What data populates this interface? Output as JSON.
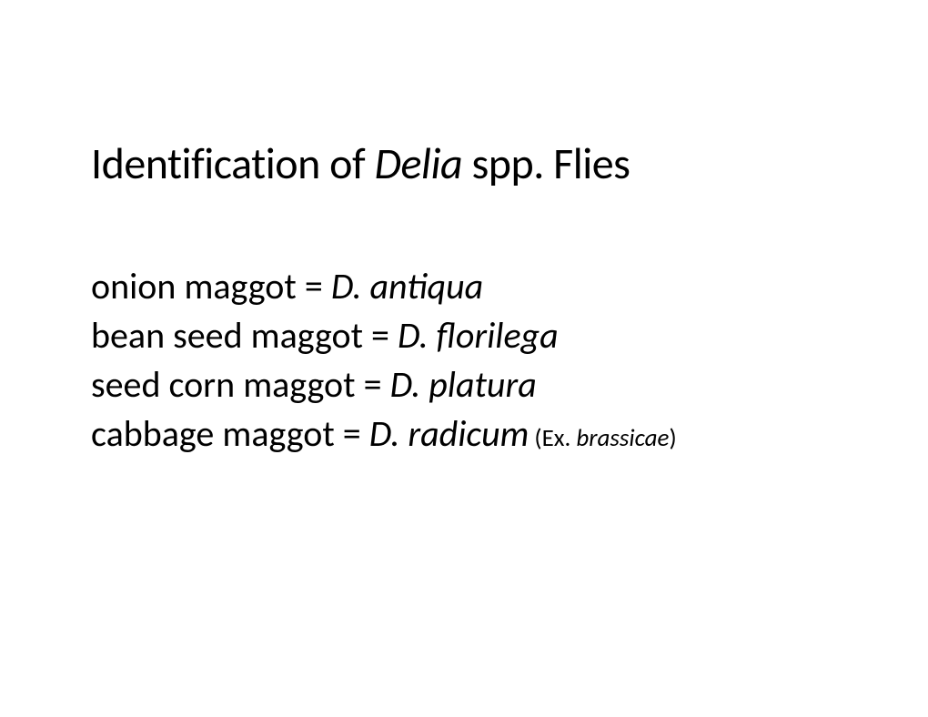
{
  "title": {
    "prefix": "Identification of ",
    "genus": "Delia",
    "suffix": " spp. Flies",
    "fontsize": 48,
    "color": "#000000"
  },
  "species": [
    {
      "common": "onion maggot = ",
      "scientific": "D. antiqua",
      "note_prefix": "",
      "note_italic": "",
      "note_suffix": ""
    },
    {
      "common": "bean seed maggot = ",
      "scientific": "D. florilega",
      "note_prefix": "",
      "note_italic": "",
      "note_suffix": ""
    },
    {
      "common": "seed corn maggot = ",
      "scientific": "D. platura",
      "note_prefix": "",
      "note_italic": "",
      "note_suffix": ""
    },
    {
      "common": "cabbage maggot = ",
      "scientific": "D. radicum",
      "note_prefix": " (Ex. ",
      "note_italic": "brassicae",
      "note_suffix": ")"
    }
  ],
  "styling": {
    "background_color": "#ffffff",
    "text_color": "#000000",
    "body_fontsize": 40,
    "note_fontsize": 27,
    "font_family": "Calibri"
  }
}
